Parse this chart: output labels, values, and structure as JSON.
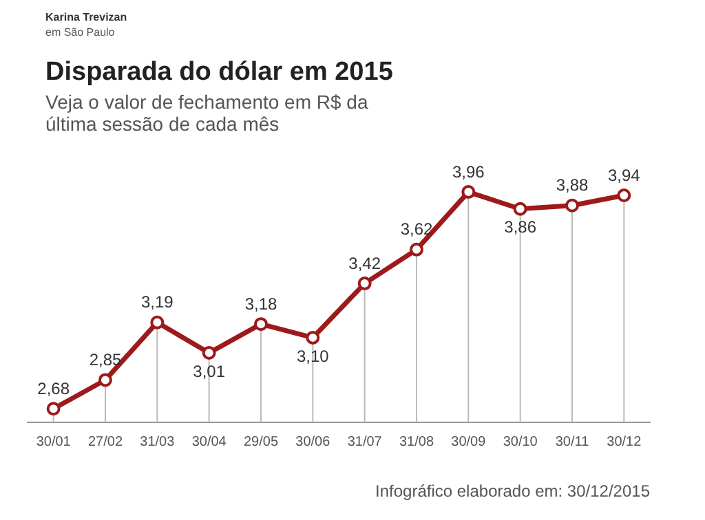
{
  "chart_data": {
    "type": "line",
    "title": "Disparada do dólar em 2015",
    "subtitle": "Veja o valor de fechamento em R$ da última sessão de cada mês",
    "categories": [
      "30/01",
      "27/02",
      "31/03",
      "30/04",
      "29/05",
      "30/06",
      "31/07",
      "31/08",
      "30/09",
      "30/10",
      "30/11",
      "30/12"
    ],
    "values": [
      2.68,
      2.85,
      3.19,
      3.01,
      3.18,
      3.1,
      3.42,
      3.62,
      3.96,
      3.86,
      3.88,
      3.94
    ],
    "value_labels": [
      "2,68",
      "2,85",
      "3,19",
      "3,01",
      "3,18",
      "3,10",
      "3,42",
      "3,62",
      "3,96",
      "3,86",
      "3,88",
      "3,94"
    ],
    "color": "#9e1a1a",
    "marker": "circle",
    "line_style": "solid",
    "grid": "x",
    "legend": false,
    "annotations": [
      "Karina Trevizan",
      "em São Paulo",
      "Infográfico elaborado em: 30/12/2015"
    ]
  }
}
